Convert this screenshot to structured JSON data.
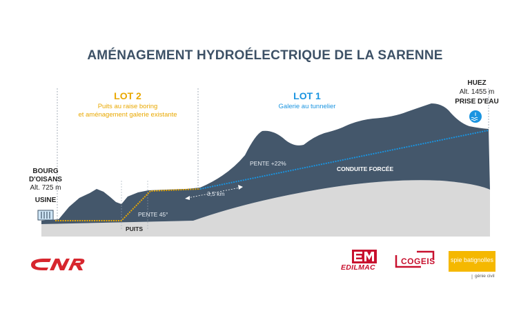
{
  "title": "AMÉNAGEMENT HYDROÉLECTRIQUE DE LA SARENNE",
  "lot2": {
    "label": "LOT 2",
    "desc_line1": "Puits au raise boring",
    "desc_line2": "et aménagement galerie existante"
  },
  "lot1": {
    "label": "LOT 1",
    "desc": "Galerie au tunnelier"
  },
  "left_site": {
    "name_line1": "BOURG",
    "name_line2": "D'OISANS",
    "altitude": "Alt. 725 m",
    "facility": "USINE"
  },
  "right_site": {
    "name": "HUEZ",
    "altitude": "Alt. 1455 m",
    "facility": "PRISE D'EAU"
  },
  "annotations": {
    "slope_gallery": "PENTE +22%",
    "penstock": "CONDUITE FORCÉE",
    "distance": "3,5 km",
    "slope_shaft": "PENTE 45°",
    "shaft": "PUITS"
  },
  "logos": {
    "cnr": "CNR",
    "edilmac_mark": "EM",
    "edilmac": "EDILMAC",
    "cogeis": "COGEIS",
    "spie": "spie batignolles",
    "spie_sub": "génie civil"
  },
  "colors": {
    "mountain": "#44576b",
    "ground": "#d9d9d9",
    "lot2": "#e9a800",
    "lot1": "#1a94e0",
    "title": "#3d5166",
    "cnr_red": "#d7262e",
    "edilmac_red": "#c8102e",
    "spie_yellow": "#f5b800"
  }
}
